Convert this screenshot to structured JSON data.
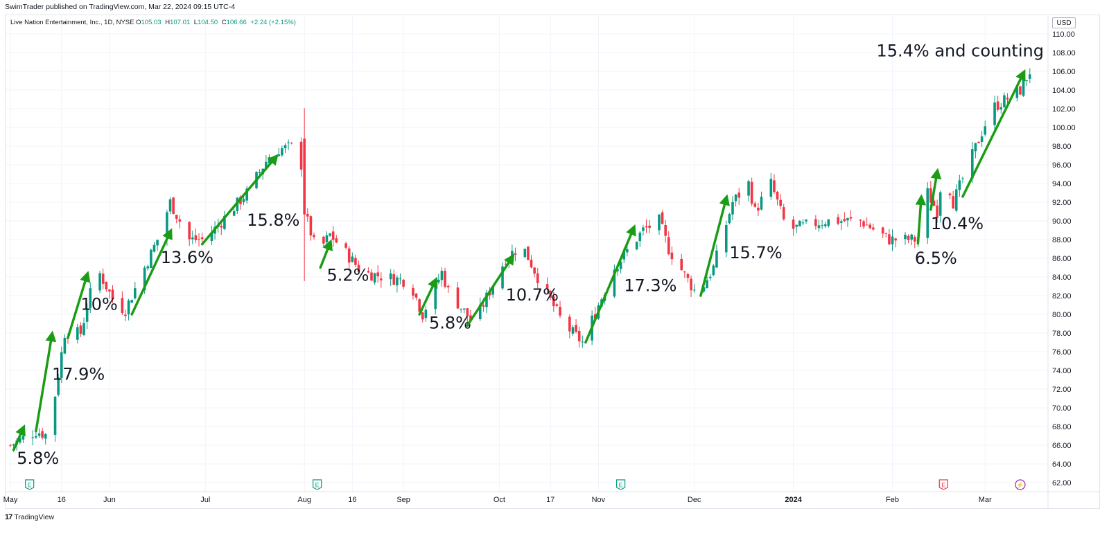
{
  "header": {
    "publisher_line": "SwimTrader published on TradingView.com, Mar 22, 2024 09:15 UTC-4"
  },
  "legend": {
    "symbol": "Live Nation Entertainment, Inc., 1D, NYSE",
    "open_label": "O",
    "open": "105.03",
    "high_label": "H",
    "high": "107.01",
    "low_label": "L",
    "low": "104.50",
    "close_label": "C",
    "close": "106.66",
    "change": "+2.24 (+2.15%)"
  },
  "currency": "USD",
  "footer": {
    "logo_glyph": "17",
    "brand": "TradingView"
  },
  "colors": {
    "up": "#089981",
    "down": "#f23645",
    "arrow": "#1a9c14",
    "grid": "#f0f3fa",
    "earnings": "#089981",
    "earnings_alert": "#f23645",
    "dividend": "#9c27b0"
  },
  "chart_data": {
    "type": "candlestick",
    "ylim": [
      61,
      111
    ],
    "y_ticks": [
      "62.00",
      "64.00",
      "66.00",
      "68.00",
      "70.00",
      "72.00",
      "74.00",
      "76.00",
      "78.00",
      "80.00",
      "82.00",
      "84.00",
      "86.00",
      "88.00",
      "90.00",
      "92.00",
      "94.00",
      "96.00",
      "98.00",
      "100.00",
      "102.00",
      "104.00",
      "106.00",
      "108.00",
      "110.00"
    ],
    "x_ticks": [
      {
        "label": "May",
        "day": 0,
        "bold": false
      },
      {
        "label": "16",
        "day": 16,
        "bold": false
      },
      {
        "label": "Jun",
        "day": 31,
        "bold": false
      },
      {
        "label": "Jul",
        "day": 61,
        "bold": false
      },
      {
        "label": "Aug",
        "day": 92,
        "bold": false
      },
      {
        "label": "16",
        "day": 107,
        "bold": false
      },
      {
        "label": "Sep",
        "day": 123,
        "bold": false
      },
      {
        "label": "Oct",
        "day": 153,
        "bold": false
      },
      {
        "label": "17",
        "day": 169,
        "bold": false
      },
      {
        "label": "Nov",
        "day": 184,
        "bold": false
      },
      {
        "label": "Dec",
        "day": 214,
        "bold": false
      },
      {
        "label": "2024",
        "day": 245,
        "bold": true
      },
      {
        "label": "Feb",
        "day": 276,
        "bold": false
      },
      {
        "label": "Mar",
        "day": 305,
        "bold": false
      }
    ],
    "waypoints": [
      [
        0,
        66
      ],
      [
        8,
        67.5
      ],
      [
        12,
        67
      ],
      [
        17,
        78
      ],
      [
        22,
        78
      ],
      [
        27,
        85
      ],
      [
        33,
        81
      ],
      [
        36,
        80.5
      ],
      [
        46,
        88
      ],
      [
        50,
        92
      ],
      [
        56,
        88
      ],
      [
        61,
        88
      ],
      [
        74,
        93
      ],
      [
        82,
        97.5
      ],
      [
        89,
        98
      ],
      [
        91,
        96
      ],
      [
        92,
        91
      ],
      [
        96,
        86.5
      ],
      [
        100,
        88.5
      ],
      [
        104,
        87
      ],
      [
        110,
        84.5
      ],
      [
        125,
        83.5
      ],
      [
        129,
        80
      ],
      [
        135,
        84.5
      ],
      [
        137,
        82.5
      ],
      [
        145,
        79
      ],
      [
        155,
        86
      ],
      [
        160,
        87.5
      ],
      [
        165,
        84
      ],
      [
        173,
        79
      ],
      [
        179,
        77
      ],
      [
        189,
        85
      ],
      [
        198,
        89
      ],
      [
        203,
        90
      ],
      [
        206,
        87
      ],
      [
        215,
        82
      ],
      [
        220,
        85
      ],
      [
        226,
        92
      ],
      [
        231,
        94
      ],
      [
        233,
        91
      ],
      [
        238,
        94
      ],
      [
        243,
        89
      ],
      [
        255,
        90
      ],
      [
        266,
        90
      ],
      [
        275,
        88
      ],
      [
        285,
        88
      ],
      [
        287,
        93
      ],
      [
        290,
        91
      ],
      [
        292,
        96
      ],
      [
        295,
        92
      ],
      [
        307,
        102
      ],
      [
        316,
        104
      ],
      [
        320,
        106.66
      ]
    ],
    "events": [
      {
        "type": "earnings",
        "day": 6,
        "glyph": "E"
      },
      {
        "type": "earnings",
        "day": 96,
        "glyph": "E"
      },
      {
        "type": "earnings",
        "day": 191,
        "glyph": "E"
      },
      {
        "type": "earnings_alert",
        "day": 292,
        "glyph": "E"
      },
      {
        "type": "dividend",
        "day": 316,
        "glyph": "⚡"
      }
    ],
    "annotations": [
      {
        "label": "5.8%",
        "from": [
          1,
          65.5
        ],
        "to": [
          4,
          67.8
        ],
        "text_at": [
          2,
          64
        ]
      },
      {
        "label": "17.9%",
        "from": [
          8,
          67.5
        ],
        "to": [
          13,
          77.8
        ],
        "text_at": [
          13,
          73
        ]
      },
      {
        "label": "10%",
        "from": [
          18,
          77.5
        ],
        "to": [
          24,
          84.2
        ],
        "text_at": [
          22,
          80.5
        ]
      },
      {
        "label": "13.6%",
        "from": [
          38,
          80
        ],
        "to": [
          50,
          88.8
        ],
        "text_at": [
          47,
          85.5
        ]
      },
      {
        "label": "15.8%",
        "from": [
          60,
          87.5
        ],
        "to": [
          83,
          96.8
        ],
        "text_at": [
          74,
          89.5
        ]
      },
      {
        "label": "5.2%",
        "from": [
          97,
          85
        ],
        "to": [
          100,
          87.6
        ],
        "text_at": [
          99,
          83.6
        ]
      },
      {
        "label": "5.8%",
        "from": [
          128,
          80
        ],
        "to": [
          133,
          83.6
        ],
        "text_at": [
          131,
          78.5
        ]
      },
      {
        "label": "10.7%",
        "from": [
          143,
          78.8
        ],
        "to": [
          157,
          86.1
        ],
        "text_at": [
          155,
          81.5
        ]
      },
      {
        "label": "17.3%",
        "from": [
          180,
          77
        ],
        "to": [
          195,
          89.2
        ],
        "text_at": [
          192,
          82.5
        ]
      },
      {
        "label": "15.7%",
        "from": [
          216,
          82
        ],
        "to": [
          224,
          92.4
        ],
        "text_at": [
          225,
          86
        ]
      },
      {
        "label": "6.5%",
        "from": [
          284,
          87.6
        ],
        "to": [
          285,
          92.4
        ],
        "text_at": [
          283,
          85.4
        ]
      },
      {
        "label": "10.4%",
        "from": [
          288,
          91.2
        ],
        "to": [
          290,
          95.2
        ],
        "text_at": [
          288,
          89.1
        ]
      },
      {
        "label": "15.4% and counting",
        "from": [
          298,
          92.6
        ],
        "to": [
          317,
          105.8
        ],
        "text_at": [
          271,
          107.6
        ]
      }
    ]
  }
}
